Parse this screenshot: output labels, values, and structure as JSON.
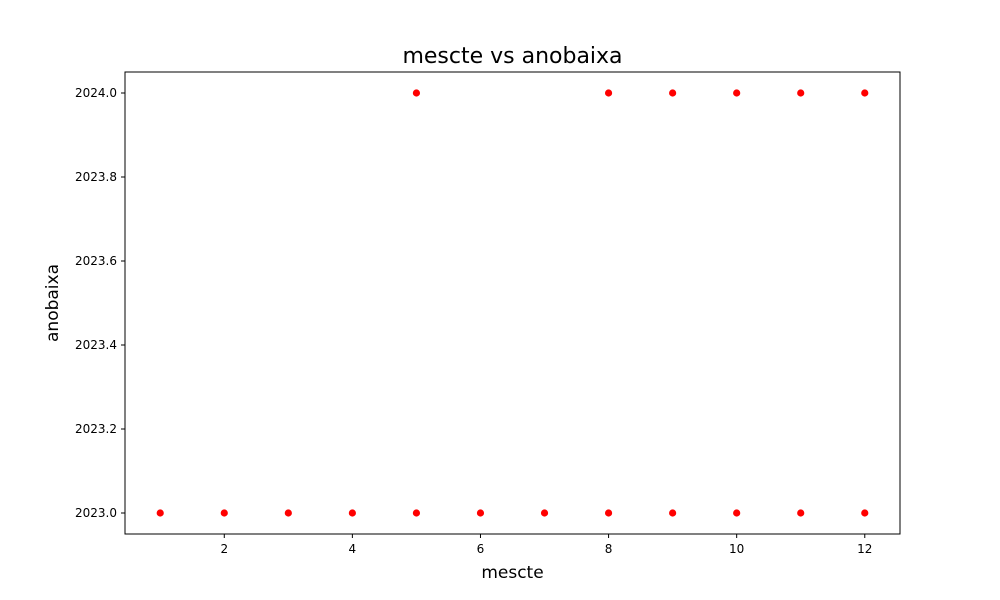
{
  "chart_data": {
    "type": "scatter",
    "title": "mescte vs anobaixa",
    "xlabel": "mescte",
    "ylabel": "anobaixa",
    "xlim": [
      0.45,
      12.55
    ],
    "ylim": [
      2022.95,
      2024.05
    ],
    "xticks": [
      2,
      4,
      6,
      8,
      10,
      12
    ],
    "yticks": [
      2023.0,
      2023.2,
      2023.4,
      2023.6,
      2023.8,
      2024.0
    ],
    "ytick_labels": [
      "2023.0",
      "2023.2",
      "2023.4",
      "2023.6",
      "2023.8",
      "2024.0"
    ],
    "grid": false,
    "marker_color": "#ff0000",
    "points": [
      {
        "x": 1,
        "y": 2023
      },
      {
        "x": 2,
        "y": 2023
      },
      {
        "x": 3,
        "y": 2023
      },
      {
        "x": 4,
        "y": 2023
      },
      {
        "x": 5,
        "y": 2023
      },
      {
        "x": 6,
        "y": 2023
      },
      {
        "x": 7,
        "y": 2023
      },
      {
        "x": 8,
        "y": 2023
      },
      {
        "x": 9,
        "y": 2023
      },
      {
        "x": 10,
        "y": 2023
      },
      {
        "x": 11,
        "y": 2023
      },
      {
        "x": 12,
        "y": 2023
      },
      {
        "x": 5,
        "y": 2024
      },
      {
        "x": 8,
        "y": 2024
      },
      {
        "x": 9,
        "y": 2024
      },
      {
        "x": 10,
        "y": 2024
      },
      {
        "x": 11,
        "y": 2024
      },
      {
        "x": 12,
        "y": 2024
      }
    ]
  }
}
